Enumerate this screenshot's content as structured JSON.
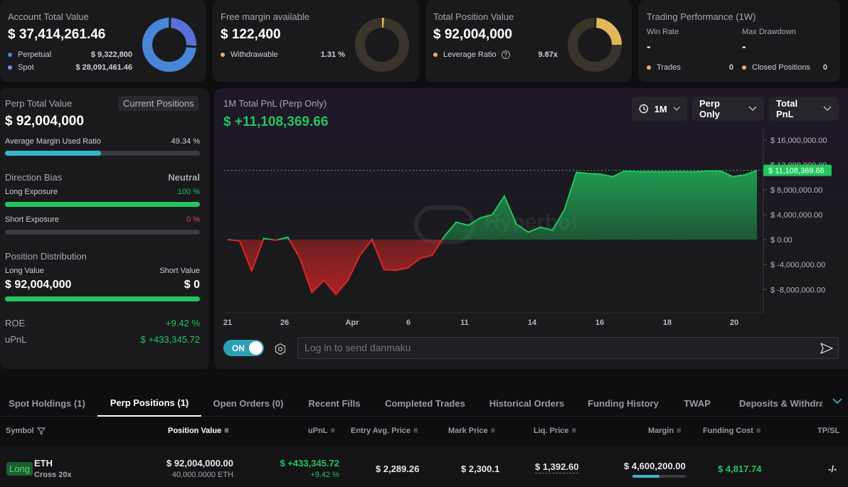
{
  "account": {
    "title": "Account Total Value",
    "value": "$ 37,414,261.46",
    "rows": [
      {
        "label": "Perpetual",
        "value": "$ 9,322,800"
      },
      {
        "label": "Spot",
        "value": "$ 28,091,461.46"
      }
    ]
  },
  "margin": {
    "title": "Free margin available",
    "value": "$ 122,400",
    "row_label": "Withdrawable",
    "row_value": "1.31 %"
  },
  "position": {
    "title": "Total Position Value",
    "value": "$ 92,004,000",
    "row_label": "Leverage Ratio",
    "row_value": "9.87x"
  },
  "performance": {
    "title": "Trading Performance (1W)",
    "win_rate_label": "Win Rate",
    "win_rate": "-",
    "drawdown_label": "Max Drawdown",
    "drawdown": "-",
    "trades_label": "Trades",
    "trades": "0",
    "closed_label": "Closed Positions",
    "closed": "0"
  },
  "perp": {
    "title": "Perp Total Value",
    "button": "Current Positions",
    "value": "$ 92,004,000",
    "margin_used_label": "Average Margin Used Ratio",
    "margin_used": "49.34 %",
    "margin_used_fraction": 0.4934,
    "direction_label": "Direction Bias",
    "direction": "Neutral",
    "long_label": "Long Exposure",
    "long_value": "100 %",
    "long_fraction": 1.0,
    "short_label": "Short Exposure",
    "short_value": "0 %",
    "short_fraction": 0.0,
    "dist_label": "Position Distribution",
    "long_val_label": "Long Value",
    "short_val_label": "Short Value",
    "long_val": "$ 92,004,000",
    "short_val": "$ 0",
    "dist_fraction": 1.0,
    "roe_label": "ROE",
    "roe": "+9.42 %",
    "upnl_label": "uPnL",
    "upnl": "$ +433,345.72"
  },
  "pnl": {
    "title": "1M Total PnL (Perp Only)",
    "value": "$ +11,108,369.66",
    "period": "1M",
    "scope": "Perp Only",
    "metric": "Total PnL",
    "toggle": "ON",
    "danmaku_placeholder": "Log in to send danmaku",
    "watermark": "Hyperbot"
  },
  "chart_data": {
    "type": "area",
    "x_ticks": [
      "21",
      "26",
      "Apr",
      "6",
      "11",
      "14",
      "16",
      "18",
      "20"
    ],
    "y_ticks": [
      "$ 16,000,000.00",
      "$ 12,000,000.00",
      "$ 8,000,000.00",
      "$ 4,000,000.00",
      "$ 0.00",
      "$ -4,000,000.00",
      "$ -8,000,000.00"
    ],
    "ylim": [
      -11500000,
      17000000
    ],
    "last_label": "$ 11,108,369.66",
    "last_value": 11108369.66,
    "values": [
      0,
      -200000,
      -5000000,
      200000,
      -100000,
      400000,
      -3000000,
      -8500000,
      -6500000,
      -8800000,
      -6500000,
      -2500000,
      0,
      -4800000,
      -4900000,
      -4500000,
      -3000000,
      -2500000,
      500000,
      2800000,
      2300000,
      3500000,
      4000000,
      7000000,
      2500000,
      1200000,
      2000000,
      1500000,
      4800000,
      10800000,
      10600000,
      10500000,
      10100000,
      11000000,
      10900000,
      10900000,
      10900000,
      10900000,
      10900000,
      10900000,
      11000000,
      11000000,
      10100000,
      10400000,
      11100000
    ],
    "colors": {
      "positive": "#22c55e",
      "negative": "#dc2626"
    }
  },
  "tabs": [
    "Spot Holdings (1)",
    "Perp Positions (1)",
    "Open Orders (0)",
    "Recent Fills",
    "Completed Trades",
    "Historical Orders",
    "Funding History",
    "TWAP",
    "Deposits & Withdraw"
  ],
  "table": {
    "headers": [
      "Symbol",
      "Position Value",
      "uPnL",
      "Entry Avg. Price",
      "Mark Price",
      "Liq. Price",
      "Margin",
      "Funding Cost",
      "TP/SL"
    ],
    "row": {
      "side": "Long",
      "symbol": "ETH",
      "mode": "Cross 20x",
      "position_value": "$ 92,004,000.00",
      "size": "40,000.0000 ETH",
      "upnl": "$ +433,345.72",
      "upnl_pct": "+9.42 %",
      "entry": "$ 2,289.26",
      "mark": "$ 2,300.1",
      "liq": "$ 1,392.60",
      "margin": "$ 4,600,200.00",
      "margin_fraction": 0.5,
      "funding": "$ 4,817.74",
      "tpsl": "-/-"
    }
  },
  "colors": {
    "accent_blue": "#4f7fe0",
    "accent_yellow": "#e0b75a",
    "teal": "#35b7c9",
    "green": "#22c55e"
  }
}
